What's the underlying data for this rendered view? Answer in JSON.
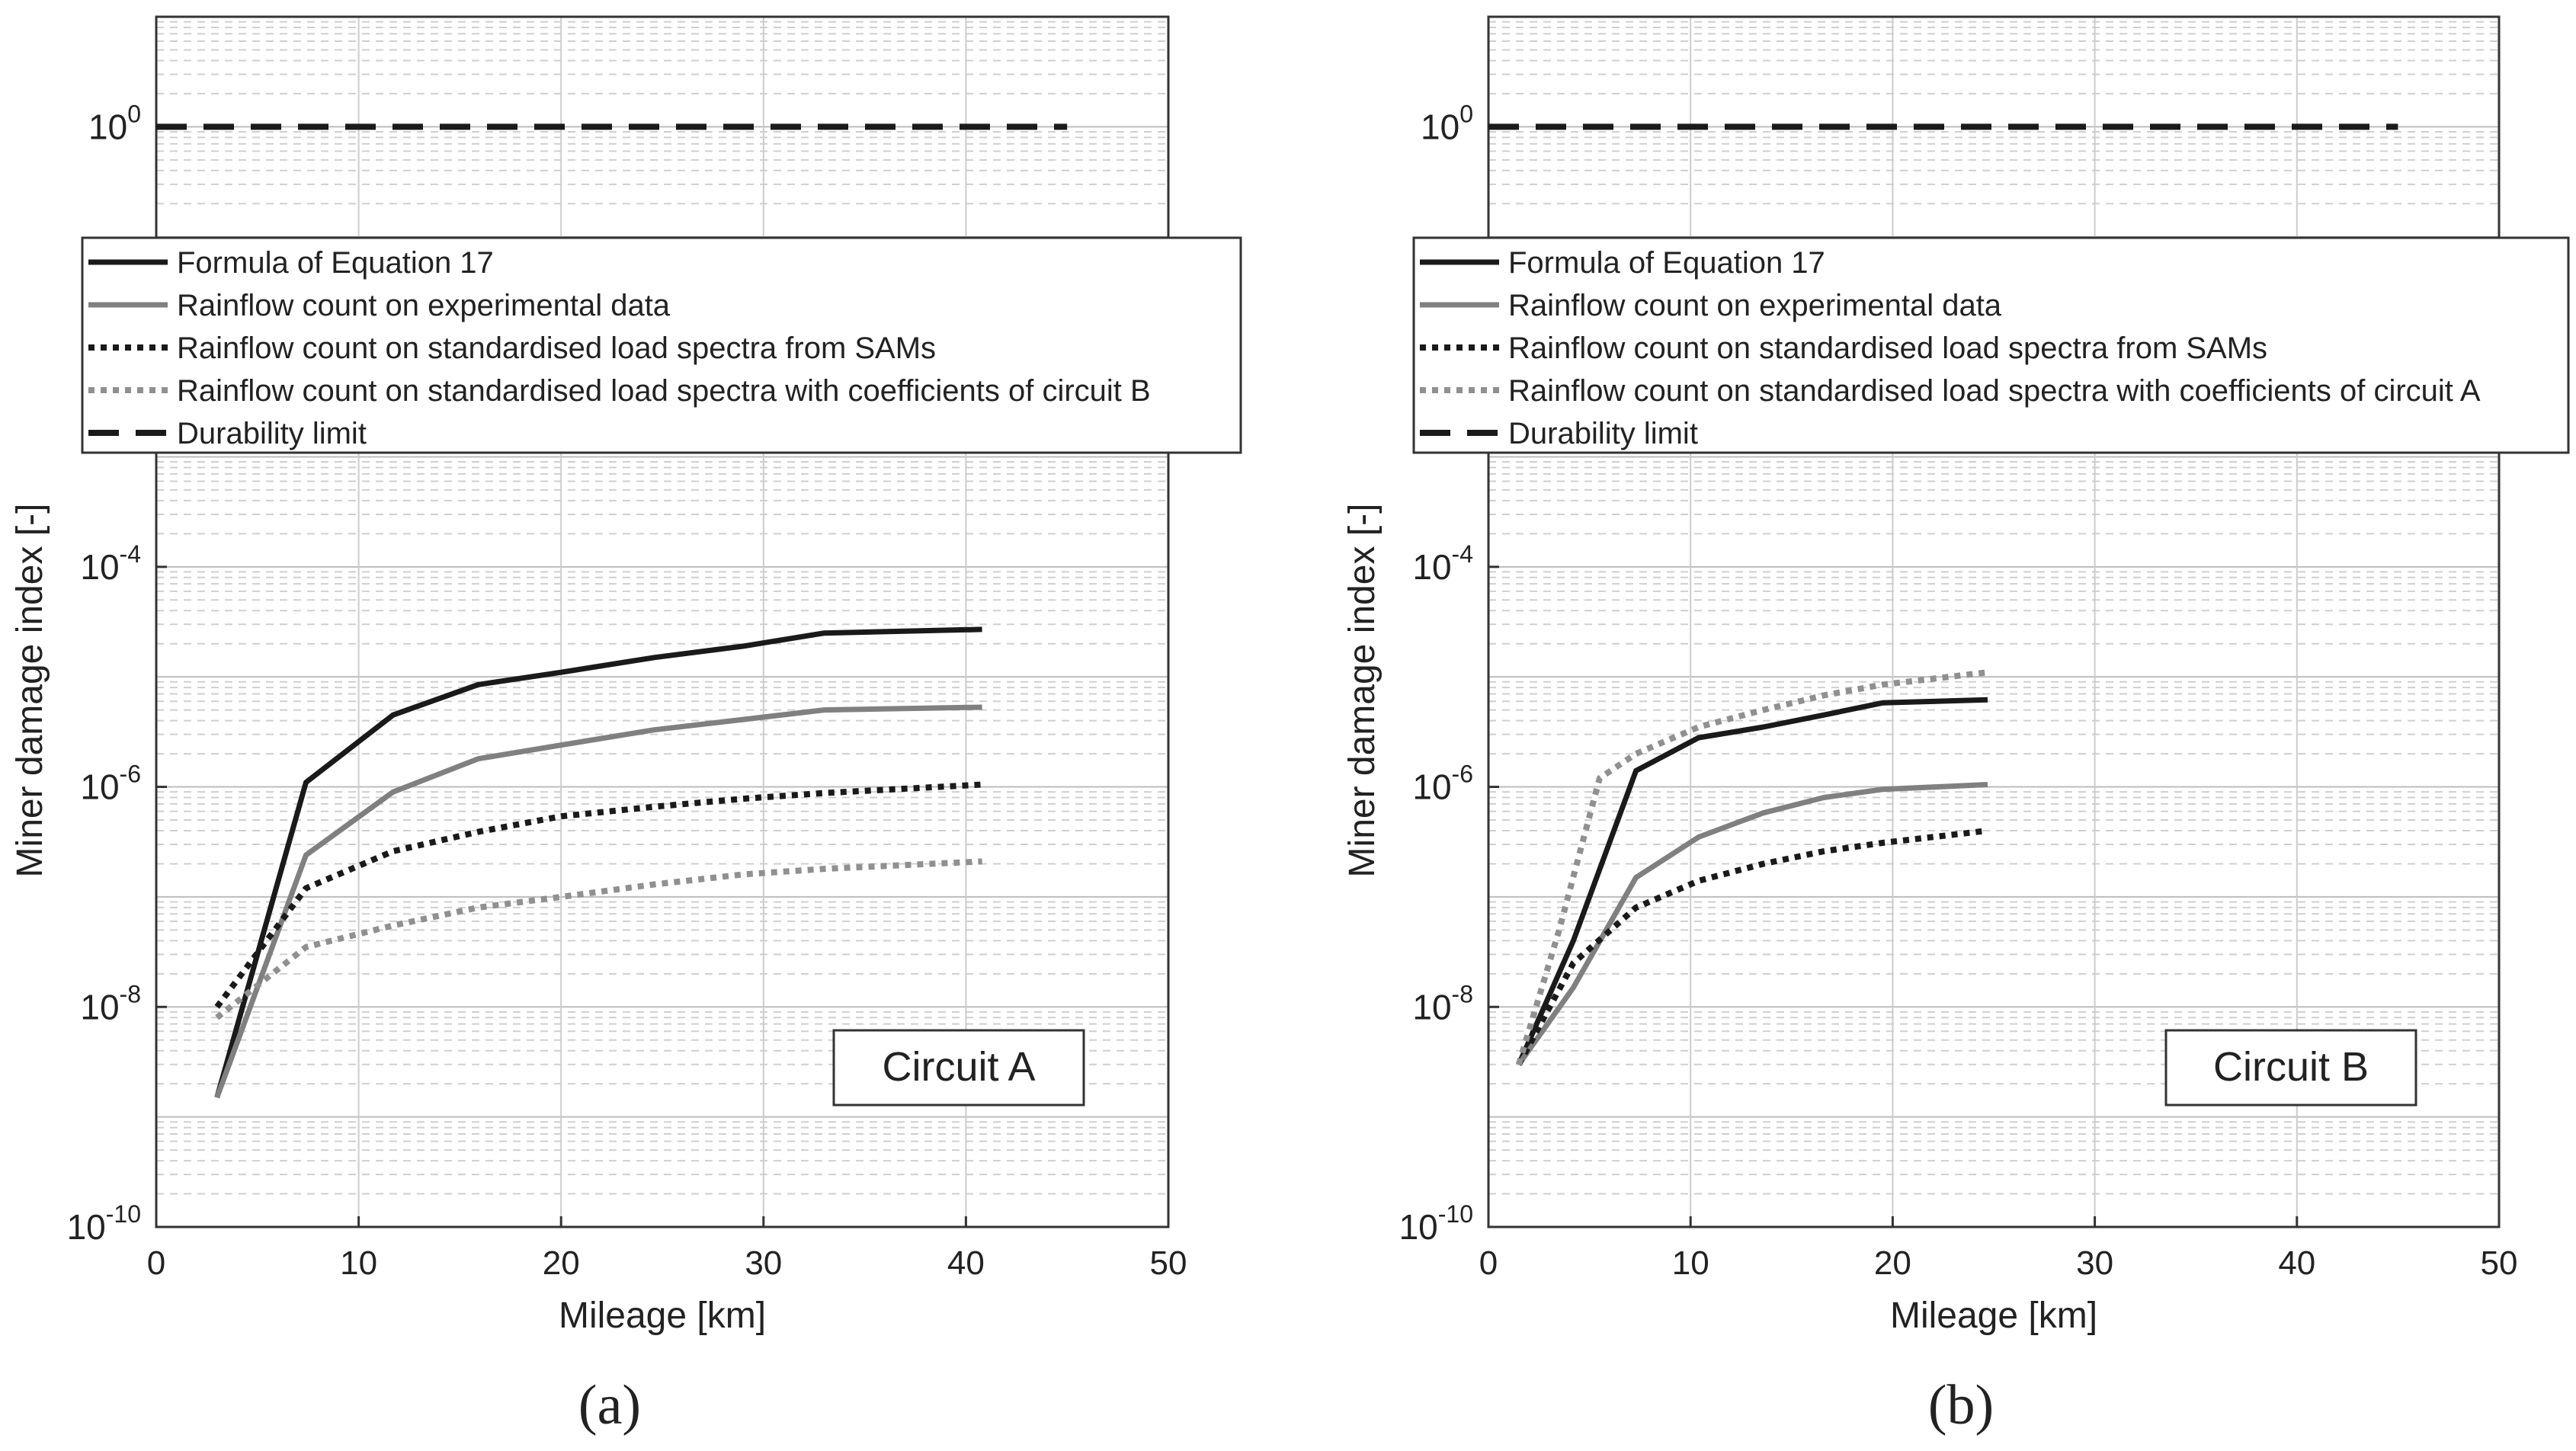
{
  "chart_data": [
    {
      "type": "line",
      "panel_label": "(a)",
      "annotation": "Circuit A",
      "xlabel": "Mileage [km]",
      "ylabel": "Miner damage index [-]",
      "xlim": [
        0,
        50
      ],
      "ylim": [
        1e-10,
        10
      ],
      "yscale": "log",
      "x_ticks": [
        0,
        10,
        20,
        30,
        40,
        50
      ],
      "y_ticks": [
        {
          "base": "10",
          "exp": "-10",
          "value": 1e-10
        },
        {
          "base": "10",
          "exp": "-8",
          "value": 1e-08
        },
        {
          "base": "10",
          "exp": "-6",
          "value": 1e-06
        },
        {
          "base": "10",
          "exp": "-4",
          "value": 0.0001
        },
        {
          "base": "10",
          "exp": "0",
          "value": 1
        }
      ],
      "grid": true,
      "legend_position": "upper",
      "series": [
        {
          "name": "Formula of Equation 17",
          "style": "solid",
          "color": "#1a1a1a",
          "x": [
            3,
            7.4,
            11.7,
            15.9,
            20,
            24.6,
            29,
            33,
            40.8
          ],
          "y": [
            1.5e-09,
            1.1e-06,
            4.5e-06,
            8.5e-06,
            1.1e-05,
            1.5e-05,
            1.9e-05,
            2.5e-05,
            2.7e-05
          ]
        },
        {
          "name": "Rainflow count on experimental data",
          "style": "solid",
          "color": "#808080",
          "x": [
            3,
            7.4,
            11.7,
            15.9,
            20,
            24.6,
            29,
            33,
            40.8
          ],
          "y": [
            1.5e-09,
            2.4e-07,
            9e-07,
            1.8e-06,
            2.4e-06,
            3.3e-06,
            4.1e-06,
            5e-06,
            5.3e-06
          ]
        },
        {
          "name": "Rainflow count on standardised load spectra from SAMs",
          "style": "dotted",
          "color": "#1a1a1a",
          "x": [
            3,
            7.4,
            11.7,
            15.9,
            20,
            24.6,
            29,
            33,
            40.8
          ],
          "y": [
            1e-08,
            1.2e-07,
            2.6e-07,
            3.9e-07,
            5.4e-07,
            6.6e-07,
            7.8e-07,
            8.8e-07,
            1.05e-06
          ]
        },
        {
          "name": "Rainflow count on standardised load spectra with coefficients of circuit B",
          "style": "dotted",
          "color": "#909090",
          "x": [
            3,
            7.4,
            11.7,
            15.9,
            20,
            24.6,
            29,
            33,
            40.8
          ],
          "y": [
            8e-09,
            3.5e-08,
            5.5e-08,
            8e-08,
            1e-07,
            1.3e-07,
            1.6e-07,
            1.8e-07,
            2.1e-07
          ]
        },
        {
          "name": "Durability limit",
          "style": "dashed",
          "color": "#1a1a1a",
          "x": [
            0,
            45
          ],
          "y": [
            1,
            1
          ]
        }
      ]
    },
    {
      "type": "line",
      "panel_label": "(b)",
      "annotation": "Circuit B",
      "xlabel": "Mileage [km]",
      "ylabel": "Miner damage index [-]",
      "xlim": [
        0,
        50
      ],
      "ylim": [
        1e-10,
        10
      ],
      "yscale": "log",
      "x_ticks": [
        0,
        10,
        20,
        30,
        40,
        50
      ],
      "y_ticks": [
        {
          "base": "10",
          "exp": "-10",
          "value": 1e-10
        },
        {
          "base": "10",
          "exp": "-8",
          "value": 1e-08
        },
        {
          "base": "10",
          "exp": "-6",
          "value": 1e-06
        },
        {
          "base": "10",
          "exp": "-4",
          "value": 0.0001
        },
        {
          "base": "10",
          "exp": "0",
          "value": 1
        }
      ],
      "grid": true,
      "legend_position": "upper",
      "series": [
        {
          "name": "Formula of Equation 17",
          "style": "solid",
          "color": "#1a1a1a",
          "x": [
            1.5,
            4.2,
            7.3,
            10.4,
            13.6,
            16.6,
            19.5,
            24.7
          ],
          "y": [
            3e-09,
            4e-08,
            1.4e-06,
            2.8e-06,
            3.5e-06,
            4.5e-06,
            5.8e-06,
            6.2e-06
          ]
        },
        {
          "name": "Rainflow count on experimental data",
          "style": "solid",
          "color": "#808080",
          "x": [
            1.5,
            4.2,
            7.3,
            10.4,
            13.6,
            16.6,
            19.5,
            24.7
          ],
          "y": [
            3e-09,
            1.5e-08,
            1.5e-07,
            3.5e-07,
            5.8e-07,
            8e-07,
            9.5e-07,
            1.05e-06
          ]
        },
        {
          "name": "Rainflow count on standardised load spectra from SAMs",
          "style": "dotted",
          "color": "#1a1a1a",
          "x": [
            1.5,
            4.2,
            7.3,
            10.4,
            13.6,
            16.6,
            19.5,
            24.7
          ],
          "y": [
            3e-09,
            2.5e-08,
            8e-08,
            1.4e-07,
            2e-07,
            2.6e-07,
            3.1e-07,
            4e-07
          ]
        },
        {
          "name": "Rainflow count on standardised load spectra with coefficients of circuit A",
          "style": "dotted",
          "color": "#909090",
          "x": [
            1.5,
            3.5,
            5.5,
            7.3,
            10.4,
            13.6,
            16.6,
            19.5,
            24.7
          ],
          "y": [
            3e-09,
            5e-08,
            1.2e-06,
            2e-06,
            3.5e-06,
            5e-06,
            6.8e-06,
            8.5e-06,
            1.1e-05
          ]
        },
        {
          "name": "Durability limit",
          "style": "dashed",
          "color": "#1a1a1a",
          "x": [
            0,
            45
          ],
          "y": [
            1,
            1
          ]
        }
      ]
    }
  ]
}
